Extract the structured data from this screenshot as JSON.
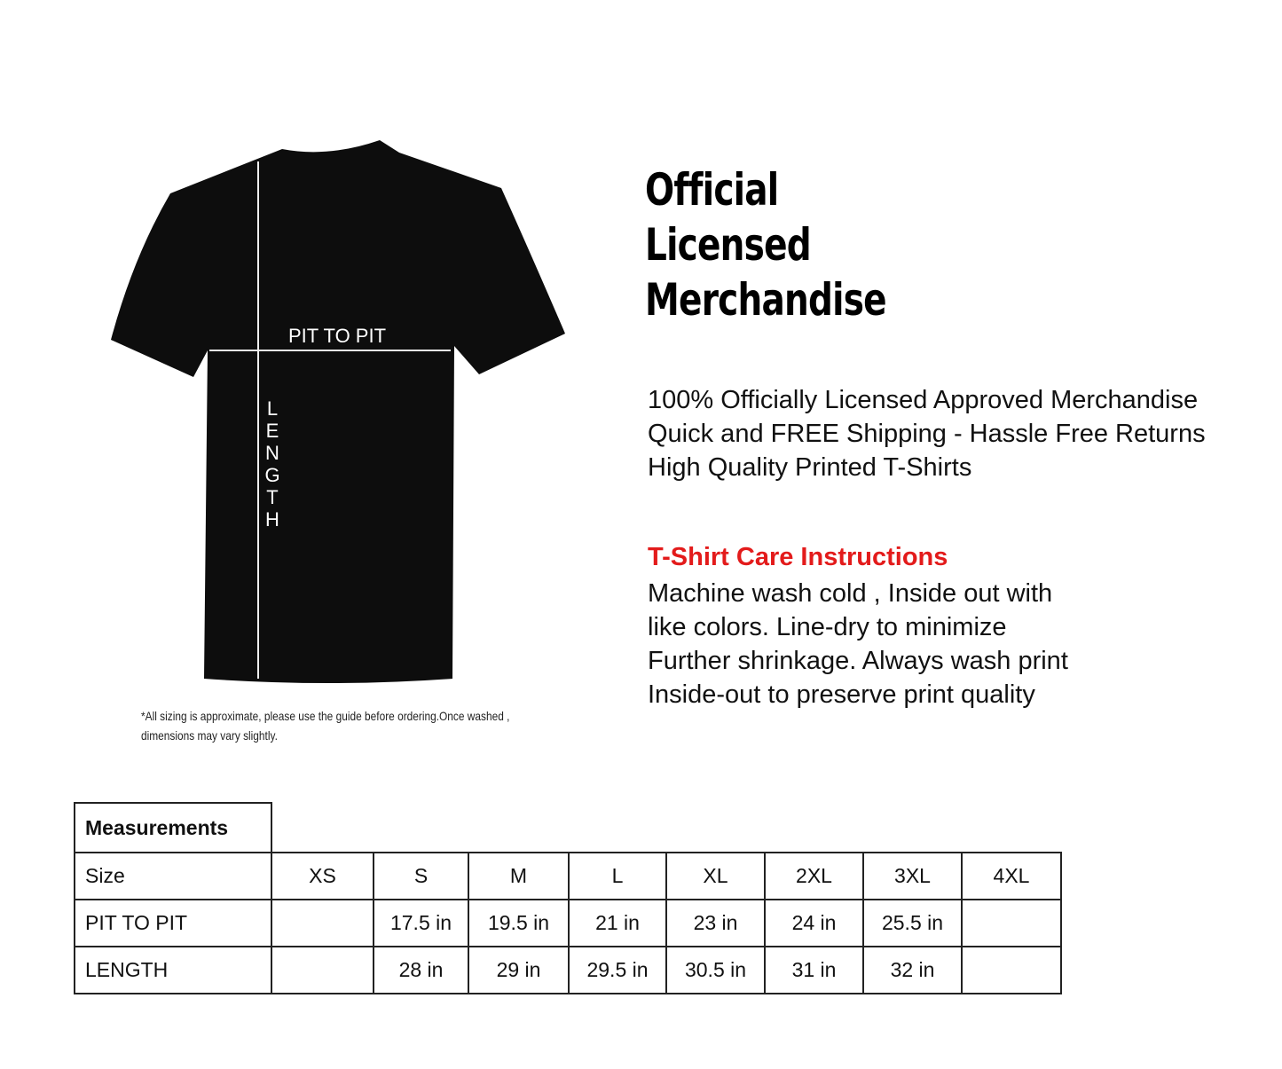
{
  "diagram": {
    "pit_label": "PIT TO PIT",
    "length_label": "LENGTH",
    "shirt_color": "#0d0d0d"
  },
  "heading": [
    "Official",
    "Licensed",
    "Merchandise"
  ],
  "features": [
    "100% Officially Licensed Approved Merchandise",
    "Quick and FREE Shipping - Hassle Free Returns",
    "High Quality Printed T-Shirts"
  ],
  "care": {
    "title": "T-Shirt Care Instructions",
    "title_color": "#e31b1b",
    "lines": [
      "Machine wash cold , Inside out with",
      "like colors. Line-dry to minimize",
      "Further shrinkage. Always wash print",
      "Inside-out to preserve print quality"
    ]
  },
  "note": "*All sizing is approximate, please use the guide before ordering.Once washed , dimensions may vary slightly.",
  "table": {
    "title": "Measurements",
    "header": [
      "Size",
      "XS",
      "S",
      "M",
      "L",
      "XL",
      "2XL",
      "3XL",
      "4XL"
    ],
    "rows": [
      [
        "PIT TO PIT",
        "",
        "17.5 in",
        "19.5 in",
        "21 in",
        "23 in",
        "24 in",
        "25.5 in",
        ""
      ],
      [
        "LENGTH",
        "",
        "28 in",
        "29 in",
        "29.5 in",
        "30.5 in",
        "31 in",
        "32 in",
        ""
      ]
    ]
  }
}
